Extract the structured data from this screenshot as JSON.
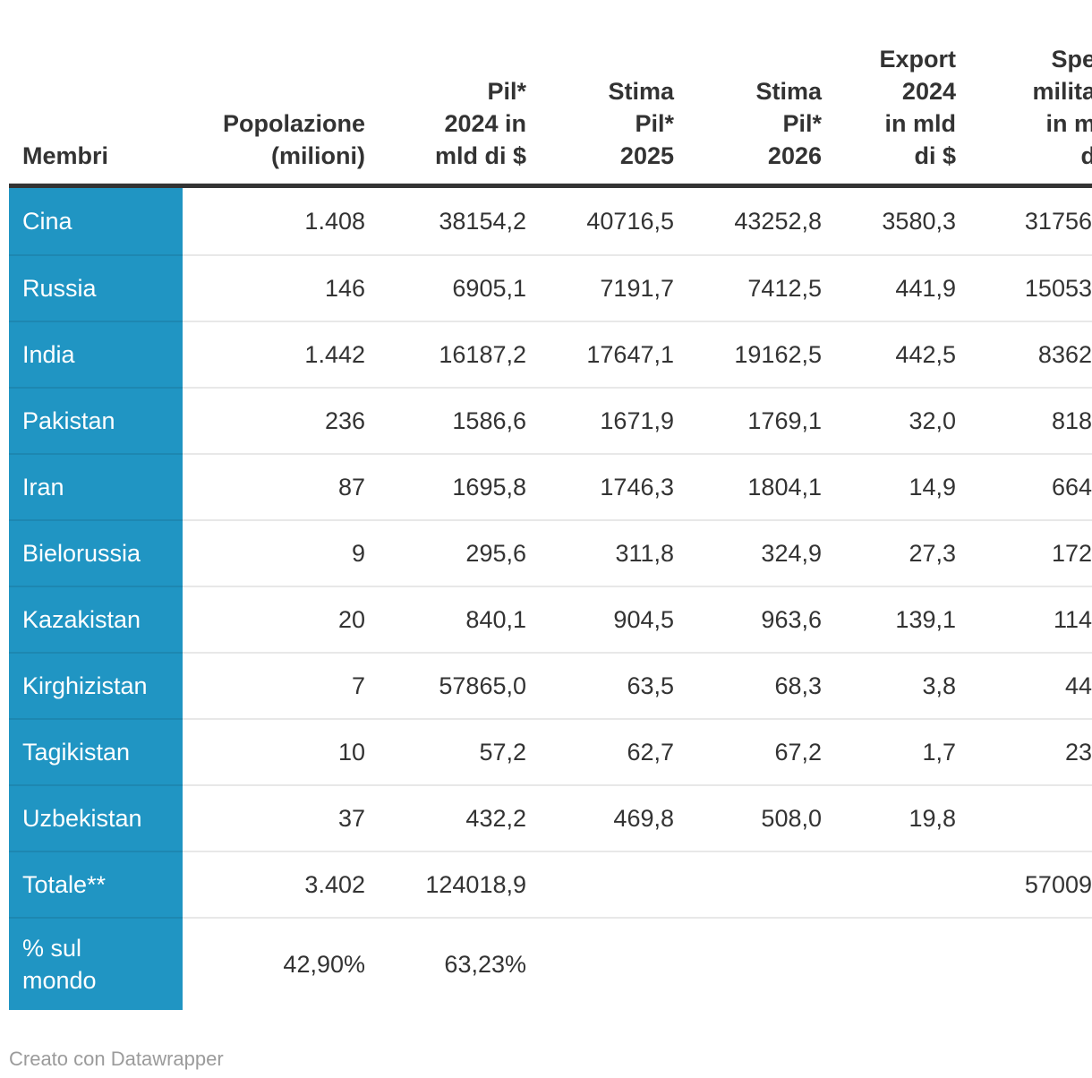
{
  "colors": {
    "accent": "#2095c3",
    "text": "#333333",
    "label_text": "#ffffff",
    "header_rule": "#333333",
    "row_divider": "rgba(0,0,0,0.09)",
    "credit": "#9b9b9b",
    "background": "#ffffff"
  },
  "table": {
    "header": {
      "membri": "Membri",
      "columns": [
        {
          "key": "popolazione",
          "lines": [
            "Popolazione",
            "(milioni)"
          ]
        },
        {
          "key": "pil-2024",
          "lines": [
            "Pil*",
            "2024 in",
            "mld di $"
          ]
        },
        {
          "key": "stima-pil-2025",
          "lines": [
            "Stima",
            "Pil*",
            "2025"
          ]
        },
        {
          "key": "stima-pil-2026",
          "lines": [
            "Stima",
            "Pil*",
            "2026"
          ]
        },
        {
          "key": "export-2024",
          "lines": [
            "Export",
            "2024",
            "in mld",
            "di $"
          ]
        },
        {
          "key": "spese-militari",
          "lines": [
            "Spe",
            "milita",
            "in m",
            "d"
          ],
          "truncated_at_right_edge": true
        }
      ]
    },
    "rows": [
      {
        "label_lines": [
          "Cina"
        ],
        "values": [
          "1.408",
          "38154,2",
          "40716,5",
          "43252,8",
          "3580,3",
          "31756"
        ]
      },
      {
        "label_lines": [
          "Russia"
        ],
        "values": [
          "146",
          "6905,1",
          "7191,7",
          "7412,5",
          "441,9",
          "15053"
        ]
      },
      {
        "label_lines": [
          "India"
        ],
        "values": [
          "1.442",
          "16187,2",
          "17647,1",
          "19162,5",
          "442,5",
          "8362"
        ]
      },
      {
        "label_lines": [
          "Pakistan"
        ],
        "values": [
          "236",
          "1586,6",
          "1671,9",
          "1769,1",
          "32,0",
          "818"
        ]
      },
      {
        "label_lines": [
          "Iran"
        ],
        "values": [
          "87",
          "1695,8",
          "1746,3",
          "1804,1",
          "14,9",
          "664"
        ]
      },
      {
        "label_lines": [
          "Bielorussia"
        ],
        "values": [
          "9",
          "295,6",
          "311,8",
          "324,9",
          "27,3",
          "172"
        ]
      },
      {
        "label_lines": [
          "Kazakistan"
        ],
        "values": [
          "20",
          "840,1",
          "904,5",
          "963,6",
          "139,1",
          "114"
        ]
      },
      {
        "label_lines": [
          "Kirghizistan"
        ],
        "values": [
          "7",
          "57865,0",
          "63,5",
          "68,3",
          "3,8",
          "44"
        ]
      },
      {
        "label_lines": [
          "Tagikistan"
        ],
        "values": [
          "10",
          "57,2",
          "62,7",
          "67,2",
          "1,7",
          "23"
        ]
      },
      {
        "label_lines": [
          "Uzbekistan"
        ],
        "values": [
          "37",
          "432,2",
          "469,8",
          "508,0",
          "19,8",
          ""
        ]
      },
      {
        "label_lines": [
          "Totale**"
        ],
        "values": [
          "3.402",
          "124018,9",
          "",
          "",
          "",
          "57009"
        ]
      },
      {
        "label_lines": [
          "% sul",
          "mondo"
        ],
        "values": [
          "42,90%",
          "63,23%",
          "",
          "",
          "",
          ""
        ],
        "tall": true
      }
    ]
  },
  "footer": {
    "credit": "Creato con Datawrapper"
  },
  "chart_data": {
    "type": "table",
    "title": "",
    "columns": [
      "Membri",
      "Popolazione (milioni)",
      "Pil* 2024 in mld di $",
      "Stima Pil* 2025",
      "Stima Pil* 2026",
      "Export 2024 in mld di $",
      "Spe… milita… in m… d… (colonna tagliata al bordo destro)"
    ],
    "rows": [
      [
        "Cina",
        "1.408",
        "38154,2",
        "40716,5",
        "43252,8",
        "3580,3",
        "31756"
      ],
      [
        "Russia",
        "146",
        "6905,1",
        "7191,7",
        "7412,5",
        "441,9",
        "15053"
      ],
      [
        "India",
        "1.442",
        "16187,2",
        "17647,1",
        "19162,5",
        "442,5",
        "8362"
      ],
      [
        "Pakistan",
        "236",
        "1586,6",
        "1671,9",
        "1769,1",
        "32,0",
        "818"
      ],
      [
        "Iran",
        "87",
        "1695,8",
        "1746,3",
        "1804,1",
        "14,9",
        "664"
      ],
      [
        "Bielorussia",
        "9",
        "295,6",
        "311,8",
        "324,9",
        "27,3",
        "172"
      ],
      [
        "Kazakistan",
        "20",
        "840,1",
        "904,5",
        "963,6",
        "139,1",
        "114"
      ],
      [
        "Kirghizistan",
        "7",
        "57865,0",
        "63,5",
        "68,3",
        "3,8",
        "44"
      ],
      [
        "Tagikistan",
        "10",
        "57,2",
        "62,7",
        "67,2",
        "1,7",
        "23"
      ],
      [
        "Uzbekistan",
        "37",
        "432,2",
        "469,8",
        "508,0",
        "19,8",
        ""
      ],
      [
        "Totale**",
        "3.402",
        "124018,9",
        "",
        "",
        "",
        "57009"
      ],
      [
        "% sul mondo",
        "42,90%",
        "63,23%",
        "",
        "",
        "",
        ""
      ]
    ],
    "legend_position": "none",
    "grid": "horizontal-dividers-only"
  }
}
